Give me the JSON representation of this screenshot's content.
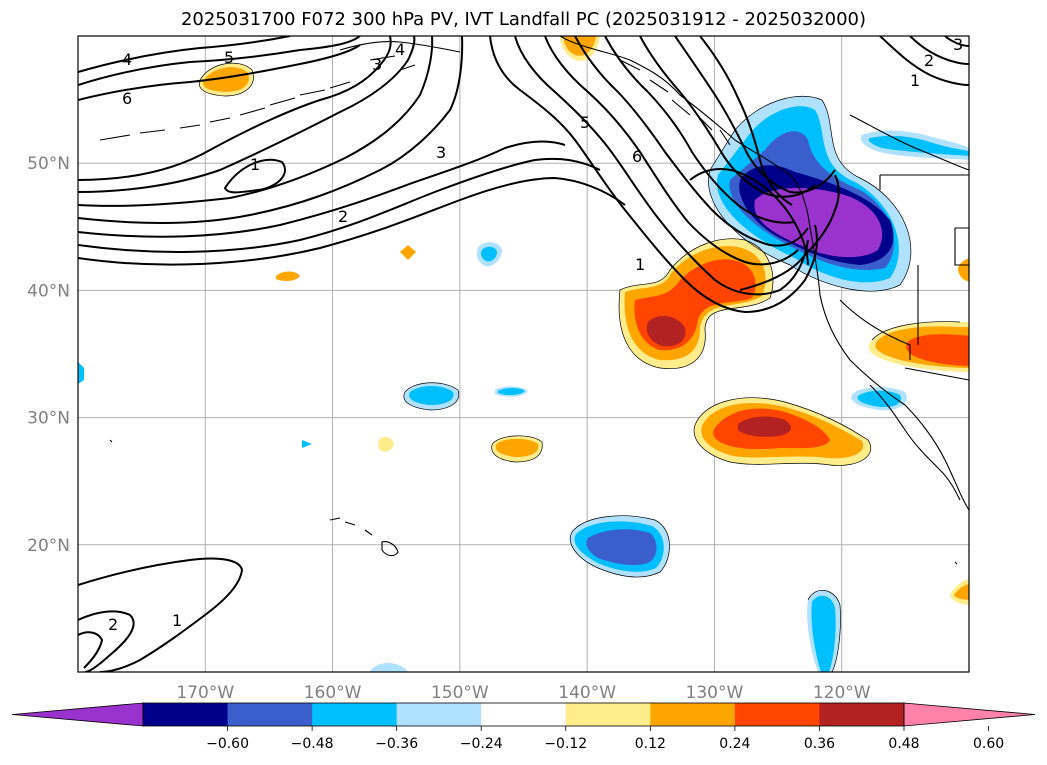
{
  "title": "2025031700 F072 300 hPa PV, IVT Landfall PC (2025031912 - 2025032000)",
  "axes": {
    "lon_ticks": [
      "170°W",
      "160°W",
      "150°W",
      "140°W",
      "130°W",
      "120°W"
    ],
    "lat_ticks": [
      "50°N",
      "40°N",
      "30°N",
      "20°N"
    ],
    "lon_range": [
      -180,
      -110
    ],
    "lat_range": [
      10,
      60
    ],
    "grid": true
  },
  "colorbar": {
    "tick_labels": [
      "−0.60",
      "−0.48",
      "−0.36",
      "−0.24",
      "−0.12",
      "0.12",
      "0.24",
      "0.36",
      "0.48",
      "0.60"
    ],
    "colors": [
      "#9a32cd",
      "#00008b",
      "#3a5fcd",
      "#00bfff",
      "#b0e2ff",
      "#ffffff",
      "#ffec8b",
      "#ffa500",
      "#ff4500",
      "#b22222",
      "#ff82ab"
    ],
    "extend": "both"
  },
  "contour_labels": [
    "4",
    "5",
    "6",
    "1",
    "2",
    "3",
    "4",
    "3",
    "5",
    "6",
    "1",
    "1",
    "2",
    "3",
    "2",
    "1"
  ],
  "colors": {
    "contour": "#000000",
    "grid": "#b0b0b0",
    "coast": "#000000"
  }
}
